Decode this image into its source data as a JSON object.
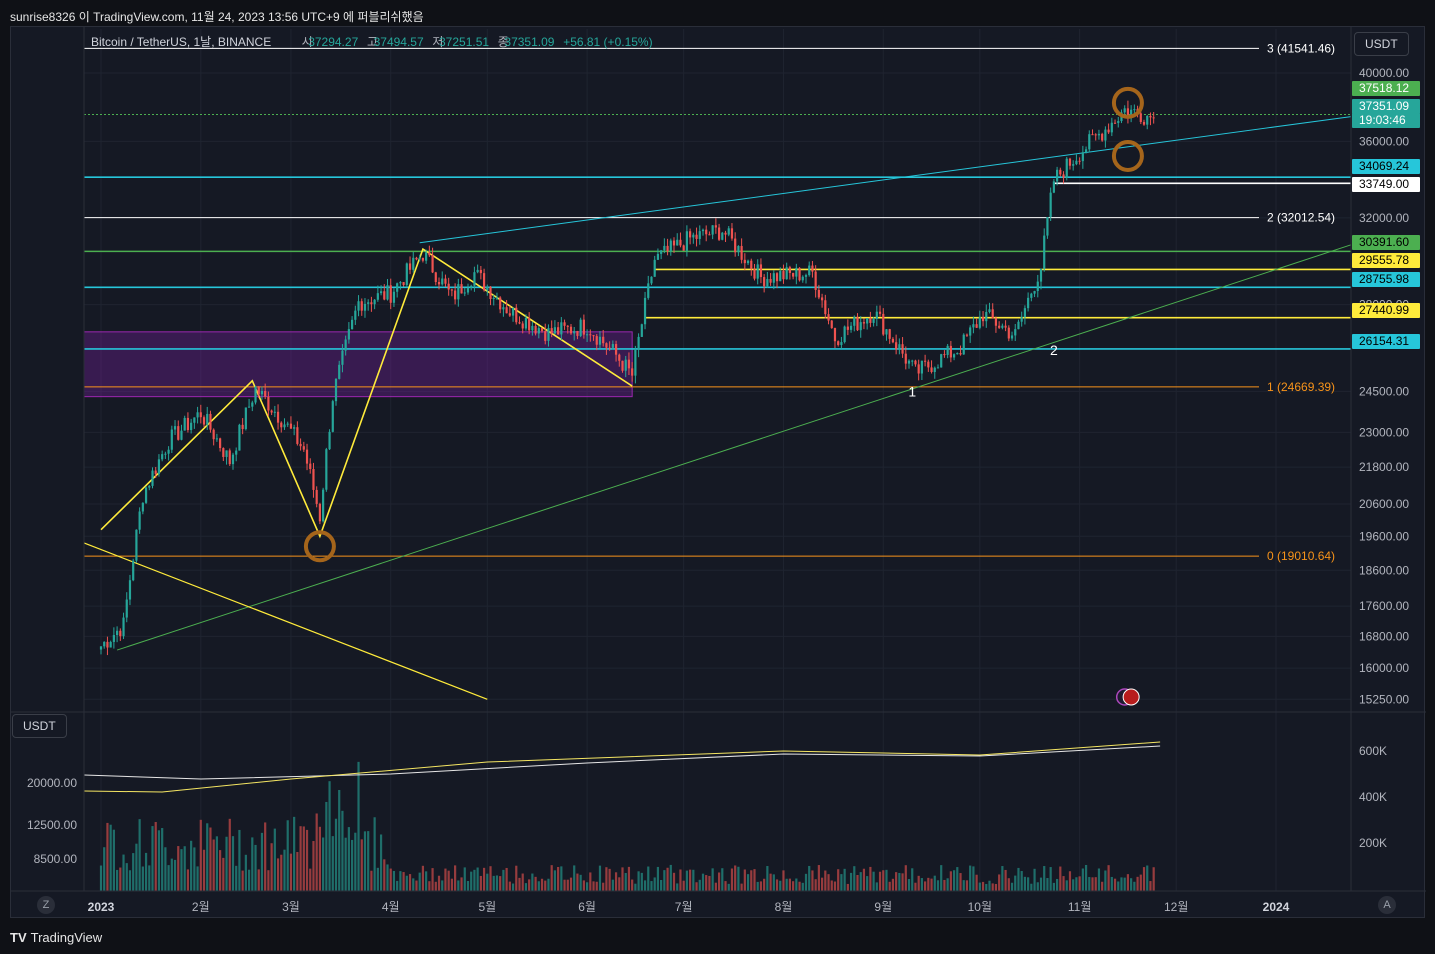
{
  "header": {
    "text": "sunrise8326 이 TradingView.com, 11월 24, 2023 13:56 UTC+9 에 퍼블리쉬했음"
  },
  "legend": {
    "symbol": "Bitcoin / TetherUS, 1날, BINANCE",
    "open_label": "시",
    "open": "37294.27",
    "high_label": "고",
    "high": "37494.57",
    "low_label": "저",
    "low": "37251.51",
    "close_label": "종",
    "close": "37351.09",
    "change": "+56.81 (+0.15%)"
  },
  "currency_top": "USDT",
  "currency_volume": "USDT",
  "footer": {
    "brand": "TradingView",
    "logo": "TV",
    "auto_btn": "A",
    "zoom_btn": "Z"
  },
  "colors": {
    "background": "#151924",
    "grid": "#1f2430",
    "cyan": "#26c6da",
    "yellow": "#ffeb3b",
    "green_line": "#4caf50",
    "orange": "#f7931a",
    "purple_zone": "#7b1fa2",
    "candle_up": "#26a69a",
    "candle_down": "#ef5350"
  },
  "chart_data": {
    "type": "candlestick",
    "title": "",
    "x_ticks": [
      "2023",
      "2월",
      "3월",
      "4월",
      "5월",
      "6월",
      "7월",
      "8월",
      "9월",
      "10월",
      "11월",
      "12월",
      "2024"
    ],
    "y_ticks": [
      "40000.00",
      "36000.00",
      "32000.00",
      "28000.00",
      "24500.00",
      "23000.00",
      "21800.00",
      "20600.00",
      "19600.00",
      "18600.00",
      "17600.00",
      "16800.00",
      "16000.00",
      "15250.00"
    ],
    "y_scale": "log",
    "price_tags": [
      {
        "value": "37518.12",
        "bg": "#4caf50",
        "fg": "#ffffff"
      },
      {
        "value": "37351.09",
        "bg": "#26a69a",
        "fg": "#ffffff"
      },
      {
        "value": "19:03:46",
        "bg": "#26a69a",
        "fg": "#ffffff"
      },
      {
        "value": "34069.24",
        "bg": "#26c6da",
        "fg": "#000000"
      },
      {
        "value": "33749.00",
        "bg": "#ffffff",
        "fg": "#000000"
      },
      {
        "value": "30391.60",
        "bg": "#4caf50",
        "fg": "#000000"
      },
      {
        "value": "29555.78",
        "bg": "#ffeb3b",
        "fg": "#000000"
      },
      {
        "value": "28755.98",
        "bg": "#26c6da",
        "fg": "#000000"
      },
      {
        "value": "27440.99",
        "bg": "#ffeb3b",
        "fg": "#000000"
      },
      {
        "value": "26154.31",
        "bg": "#26c6da",
        "fg": "#000000"
      }
    ],
    "fib_levels": [
      {
        "label": "3 (41541.46)",
        "value": 41541.46,
        "color": "#ffffff"
      },
      {
        "label": "2 (32012.54)",
        "value": 32012.54,
        "color": "#ffffff"
      },
      {
        "label": "1 (24669.39)",
        "value": 24669.39,
        "color": "#f7931a"
      },
      {
        "label": "0 (19010.64)",
        "value": 19010.64,
        "color": "#f7931a"
      }
    ],
    "horizontal_lines": [
      {
        "value": 37518.12,
        "color": "#4caf50",
        "style": "dotted"
      },
      {
        "value": 34069.24,
        "color": "#26c6da"
      },
      {
        "value": 33749.0,
        "color": "#ffffff"
      },
      {
        "value": 30391.6,
        "color": "#4caf50"
      },
      {
        "value": 29555.78,
        "color": "#ffeb3b"
      },
      {
        "value": 28755.98,
        "color": "#26c6da"
      },
      {
        "value": 27440.99,
        "color": "#ffeb3b"
      },
      {
        "value": 26154.31,
        "color": "#26c6da"
      }
    ],
    "point_labels": [
      "1",
      "2"
    ],
    "volume_axis_left": [
      "20000.00",
      "12500.00",
      "8500.00"
    ],
    "volume_axis_right": [
      "600K",
      "400K",
      "200K"
    ],
    "series_close": [
      {
        "x": "2023-01-01",
        "y": 16550
      },
      {
        "x": "2023-01-08",
        "y": 17100
      },
      {
        "x": "2023-01-14",
        "y": 20900
      },
      {
        "x": "2023-01-22",
        "y": 22700
      },
      {
        "x": "2023-02-01",
        "y": 23700
      },
      {
        "x": "2023-02-10",
        "y": 22000
      },
      {
        "x": "2023-02-18",
        "y": 24600
      },
      {
        "x": "2023-02-26",
        "y": 23500
      },
      {
        "x": "2023-03-05",
        "y": 22400
      },
      {
        "x": "2023-03-10",
        "y": 20200
      },
      {
        "x": "2023-03-14",
        "y": 24300
      },
      {
        "x": "2023-03-22",
        "y": 28100
      },
      {
        "x": "2023-04-01",
        "y": 28500
      },
      {
        "x": "2023-04-11",
        "y": 30300
      },
      {
        "x": "2023-04-20",
        "y": 28300
      },
      {
        "x": "2023-04-27",
        "y": 29400
      },
      {
        "x": "2023-05-08",
        "y": 27700
      },
      {
        "x": "2023-05-20",
        "y": 26800
      },
      {
        "x": "2023-06-01",
        "y": 27100
      },
      {
        "x": "2023-06-10",
        "y": 25900
      },
      {
        "x": "2023-06-15",
        "y": 25100
      },
      {
        "x": "2023-06-22",
        "y": 30000
      },
      {
        "x": "2023-07-03",
        "y": 31000
      },
      {
        "x": "2023-07-13",
        "y": 31400
      },
      {
        "x": "2023-07-25",
        "y": 29200
      },
      {
        "x": "2023-08-10",
        "y": 29400
      },
      {
        "x": "2023-08-17",
        "y": 26600
      },
      {
        "x": "2023-08-29",
        "y": 27700
      },
      {
        "x": "2023-09-11",
        "y": 25200
      },
      {
        "x": "2023-09-25",
        "y": 26200
      },
      {
        "x": "2023-10-02",
        "y": 27600
      },
      {
        "x": "2023-10-12",
        "y": 26700
      },
      {
        "x": "2023-10-20",
        "y": 29700
      },
      {
        "x": "2023-10-24",
        "y": 33900
      },
      {
        "x": "2023-11-01",
        "y": 35400
      },
      {
        "x": "2023-11-09",
        "y": 36700
      },
      {
        "x": "2023-11-15",
        "y": 37800
      },
      {
        "x": "2023-11-24",
        "y": 37351
      }
    ]
  }
}
